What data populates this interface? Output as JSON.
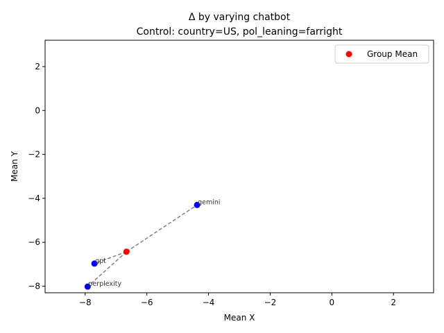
{
  "chart_data": {
    "type": "scatter",
    "title": "Δ by varying chatbot",
    "subtitle": "Control: country=US, pol_leaning=farright",
    "xlabel": "Mean X",
    "ylabel": "Mean Y",
    "xlim": [
      -9.3,
      3.3
    ],
    "ylim": [
      -8.3,
      3.2
    ],
    "xticks": [
      -8,
      -6,
      -4,
      -2,
      0,
      2
    ],
    "yticks": [
      2,
      0,
      -2,
      -4,
      -6,
      -8
    ],
    "xtick_labels": [
      "−8",
      "−6",
      "−4",
      "−2",
      "0",
      "2"
    ],
    "ytick_labels": [
      "2",
      "0",
      "−2",
      "−4",
      "−6",
      "−8"
    ],
    "grid": false,
    "legend_position": "top-right",
    "points": [
      {
        "label": "gemini",
        "x": -4.37,
        "y": -4.3
      },
      {
        "label": "gpt",
        "x": -7.7,
        "y": -6.97
      },
      {
        "label": "perplexity",
        "x": -7.92,
        "y": -8.02
      }
    ],
    "group_mean": {
      "name": "Group Mean",
      "x": -6.66,
      "y": -6.43
    },
    "colors": {
      "points": "#0000ff",
      "group_mean": "#ff0000",
      "connector": "#808080"
    }
  }
}
